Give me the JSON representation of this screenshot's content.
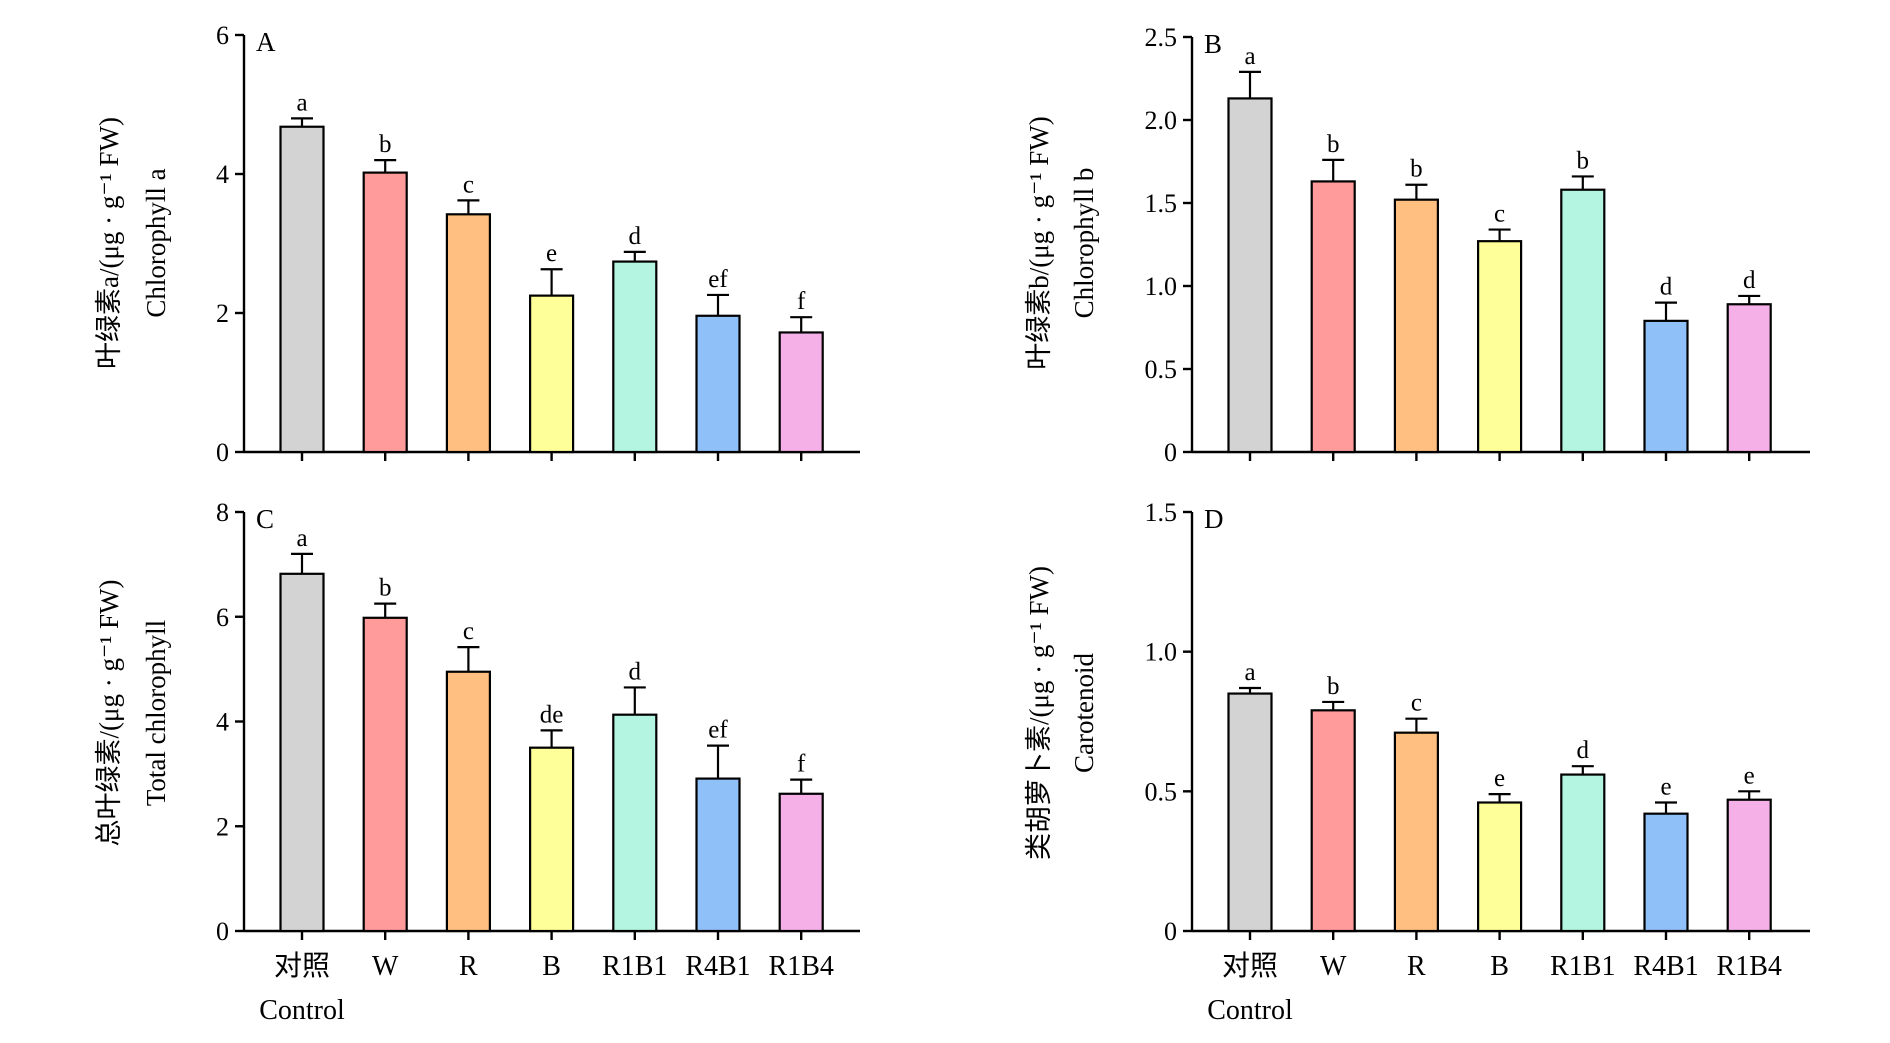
{
  "categories": [
    "对照",
    "W",
    "R",
    "B",
    "R1B1",
    "R4B1",
    "R1B4"
  ],
  "category_sublabels": [
    "Control",
    "",
    "",
    "",
    "",
    "",
    ""
  ],
  "colors": [
    "#d3d3d3",
    "#ff9b9b",
    "#ffbf80",
    "#ffff99",
    "#b3f5e0",
    "#8fc0f8",
    "#f5b0e8"
  ],
  "chart_data": [
    {
      "type": "bar",
      "panel": "A",
      "ylabel_cn": "叶绿素a/(μg · g⁻¹ FW)",
      "ylabel_en": "Chlorophyll a",
      "ylim": [
        0,
        6
      ],
      "yticks": [
        "0",
        "2",
        "4",
        "6"
      ],
      "categories": [
        "对照",
        "W",
        "R",
        "B",
        "R1B1",
        "R4B1",
        "R1B4"
      ],
      "values": [
        4.68,
        4.02,
        3.42,
        2.25,
        2.74,
        1.96,
        1.72
      ],
      "errors": [
        0.12,
        0.18,
        0.2,
        0.38,
        0.14,
        0.3,
        0.22
      ],
      "letters": [
        "a",
        "b",
        "c",
        "e",
        "d",
        "ef",
        "f"
      ]
    },
    {
      "type": "bar",
      "panel": "B",
      "ylabel_cn": "叶绿素b/(μg · g⁻¹ FW)",
      "ylabel_en": "Chlorophyll b",
      "ylim": [
        0,
        2.5
      ],
      "yticks": [
        "0",
        "0.5",
        "1.0",
        "1.5",
        "2.0",
        "2.5"
      ],
      "categories": [
        "对照",
        "W",
        "R",
        "B",
        "R1B1",
        "R4B1",
        "R1B4"
      ],
      "values": [
        2.13,
        1.63,
        1.52,
        1.27,
        1.58,
        0.79,
        0.89
      ],
      "errors": [
        0.16,
        0.13,
        0.09,
        0.07,
        0.08,
        0.11,
        0.05
      ],
      "letters": [
        "a",
        "b",
        "b",
        "c",
        "b",
        "d",
        "d"
      ]
    },
    {
      "type": "bar",
      "panel": "C",
      "ylabel_cn": "总叶绿素/(μg · g⁻¹ FW)",
      "ylabel_en": "Total chlorophyll",
      "ylim": [
        0,
        8
      ],
      "yticks": [
        "0",
        "2",
        "4",
        "6",
        "8"
      ],
      "categories": [
        "对照",
        "W",
        "R",
        "B",
        "R1B1",
        "R4B1",
        "R1B4"
      ],
      "values": [
        6.82,
        5.98,
        4.95,
        3.5,
        4.13,
        2.91,
        2.62
      ],
      "errors": [
        0.38,
        0.27,
        0.47,
        0.33,
        0.52,
        0.63,
        0.27
      ],
      "letters": [
        "a",
        "b",
        "c",
        "de",
        "d",
        "ef",
        "f"
      ]
    },
    {
      "type": "bar",
      "panel": "D",
      "ylabel_cn": "类胡萝卜素/(μg · g⁻¹ FW)",
      "ylabel_en": "Carotenoid",
      "ylim": [
        0,
        1.5
      ],
      "yticks": [
        "0",
        "0.5",
        "1.0",
        "1.5"
      ],
      "categories": [
        "对照",
        "W",
        "R",
        "B",
        "R1B1",
        "R4B1",
        "R1B4"
      ],
      "values": [
        0.85,
        0.79,
        0.71,
        0.46,
        0.56,
        0.42,
        0.47
      ],
      "errors": [
        0.02,
        0.03,
        0.05,
        0.03,
        0.03,
        0.04,
        0.03
      ],
      "letters": [
        "a",
        "b",
        "c",
        "e",
        "d",
        "e",
        "e"
      ]
    }
  ]
}
